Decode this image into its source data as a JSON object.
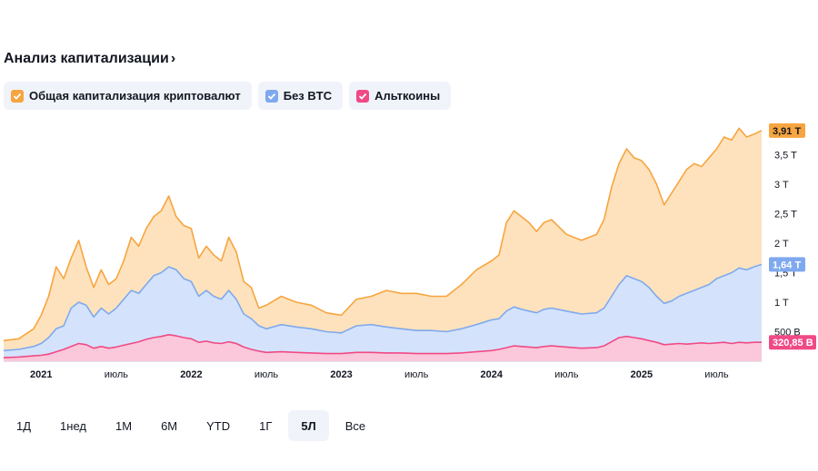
{
  "header": {
    "title": "Анализ капитализации"
  },
  "legend": [
    {
      "label": "Общая капитализация криптовалют",
      "color": "#f7a540"
    },
    {
      "label": "Без BTC",
      "color": "#7fa9ee"
    },
    {
      "label": "Альткоины",
      "color": "#f04a86"
    }
  ],
  "ranges": [
    "1Д",
    "1нед",
    "1М",
    "6М",
    "YTD",
    "1Г",
    "5Л",
    "Все"
  ],
  "active_range": "5Л",
  "chart_data": {
    "type": "area",
    "x_ticks": [
      "2021",
      "июль",
      "2022",
      "июль",
      "2023",
      "июль",
      "2024",
      "июль",
      "2025",
      "июль"
    ],
    "x_tick_years": [
      2021.0,
      2021.5,
      2022.0,
      2022.5,
      2023.0,
      2023.5,
      2024.0,
      2024.5,
      2025.0,
      2025.5
    ],
    "y_ticks": [
      {
        "label": "500 B",
        "value": 0.5
      },
      {
        "label": "1 T",
        "value": 1.0
      },
      {
        "label": "1,5 T",
        "value": 1.5
      },
      {
        "label": "2 T",
        "value": 2.0
      },
      {
        "label": "2,5 T",
        "value": 2.5
      },
      {
        "label": "3 T",
        "value": 3.0
      },
      {
        "label": "3,5 T",
        "value": 3.5
      }
    ],
    "y_unit": "trillions USD",
    "ylim": [
      0,
      4.0
    ],
    "xlim": [
      2020.75,
      2025.8
    ],
    "x": [
      2020.75,
      2020.85,
      2020.95,
      2021.0,
      2021.05,
      2021.1,
      2021.15,
      2021.2,
      2021.25,
      2021.3,
      2021.35,
      2021.4,
      2021.45,
      2021.5,
      2021.55,
      2021.6,
      2021.65,
      2021.7,
      2021.75,
      2021.8,
      2021.85,
      2021.9,
      2021.95,
      2022.0,
      2022.05,
      2022.1,
      2022.15,
      2022.2,
      2022.25,
      2022.3,
      2022.35,
      2022.4,
      2022.45,
      2022.5,
      2022.6,
      2022.7,
      2022.8,
      2022.9,
      2023.0,
      2023.1,
      2023.2,
      2023.3,
      2023.4,
      2023.5,
      2023.6,
      2023.7,
      2023.8,
      2023.9,
      2024.0,
      2024.05,
      2024.1,
      2024.15,
      2024.2,
      2024.25,
      2024.3,
      2024.35,
      2024.4,
      2024.5,
      2024.6,
      2024.7,
      2024.75,
      2024.8,
      2024.85,
      2024.9,
      2024.95,
      2025.0,
      2025.05,
      2025.1,
      2025.15,
      2025.2,
      2025.25,
      2025.3,
      2025.35,
      2025.4,
      2025.45,
      2025.5,
      2025.55,
      2025.6,
      2025.65,
      2025.7,
      2025.75,
      2025.8
    ],
    "series": [
      {
        "name": "Общая капитализация криптовалют",
        "color": "#f7a540",
        "last_label": "3,91 T",
        "values": [
          0.35,
          0.38,
          0.55,
          0.78,
          1.1,
          1.6,
          1.4,
          1.75,
          2.05,
          1.6,
          1.25,
          1.55,
          1.3,
          1.4,
          1.7,
          2.1,
          1.95,
          2.25,
          2.45,
          2.55,
          2.8,
          2.45,
          2.3,
          2.25,
          1.75,
          1.95,
          1.8,
          1.7,
          2.1,
          1.85,
          1.35,
          1.25,
          0.9,
          0.95,
          1.1,
          1.0,
          0.95,
          0.82,
          0.78,
          1.05,
          1.1,
          1.2,
          1.15,
          1.15,
          1.1,
          1.1,
          1.3,
          1.55,
          1.7,
          1.8,
          2.35,
          2.55,
          2.45,
          2.35,
          2.2,
          2.35,
          2.4,
          2.15,
          2.05,
          2.15,
          2.4,
          2.95,
          3.35,
          3.6,
          3.45,
          3.4,
          3.25,
          3.0,
          2.65,
          2.85,
          3.05,
          3.25,
          3.35,
          3.3,
          3.45,
          3.6,
          3.8,
          3.75,
          3.95,
          3.8,
          3.85,
          3.91
        ]
      },
      {
        "name": "Без BTC",
        "color": "#7fa9ee",
        "last_label": "1,64 T",
        "values": [
          0.18,
          0.2,
          0.25,
          0.3,
          0.4,
          0.55,
          0.6,
          0.9,
          1.0,
          0.95,
          0.75,
          0.9,
          0.8,
          0.9,
          1.05,
          1.2,
          1.15,
          1.3,
          1.45,
          1.5,
          1.6,
          1.55,
          1.4,
          1.35,
          1.1,
          1.2,
          1.1,
          1.05,
          1.2,
          1.05,
          0.8,
          0.72,
          0.6,
          0.55,
          0.62,
          0.58,
          0.55,
          0.5,
          0.48,
          0.6,
          0.62,
          0.58,
          0.55,
          0.52,
          0.52,
          0.5,
          0.55,
          0.62,
          0.7,
          0.72,
          0.85,
          0.92,
          0.88,
          0.85,
          0.82,
          0.88,
          0.9,
          0.85,
          0.8,
          0.82,
          0.9,
          1.1,
          1.3,
          1.45,
          1.4,
          1.35,
          1.25,
          1.1,
          0.98,
          1.02,
          1.1,
          1.15,
          1.2,
          1.25,
          1.3,
          1.4,
          1.45,
          1.5,
          1.58,
          1.55,
          1.6,
          1.64
        ]
      },
      {
        "name": "Альткоины",
        "color": "#f04a86",
        "last_label": "320,85 B",
        "values": [
          0.06,
          0.07,
          0.09,
          0.1,
          0.12,
          0.16,
          0.2,
          0.25,
          0.3,
          0.28,
          0.22,
          0.25,
          0.22,
          0.24,
          0.27,
          0.3,
          0.33,
          0.37,
          0.4,
          0.42,
          0.45,
          0.43,
          0.4,
          0.38,
          0.32,
          0.34,
          0.31,
          0.3,
          0.33,
          0.3,
          0.24,
          0.2,
          0.17,
          0.15,
          0.16,
          0.15,
          0.14,
          0.13,
          0.13,
          0.15,
          0.15,
          0.14,
          0.14,
          0.13,
          0.13,
          0.13,
          0.14,
          0.16,
          0.18,
          0.2,
          0.23,
          0.26,
          0.25,
          0.24,
          0.23,
          0.25,
          0.26,
          0.24,
          0.22,
          0.23,
          0.26,
          0.33,
          0.4,
          0.42,
          0.4,
          0.38,
          0.35,
          0.32,
          0.28,
          0.29,
          0.3,
          0.29,
          0.3,
          0.31,
          0.3,
          0.31,
          0.32,
          0.3,
          0.32,
          0.31,
          0.32,
          0.32
        ]
      }
    ]
  }
}
